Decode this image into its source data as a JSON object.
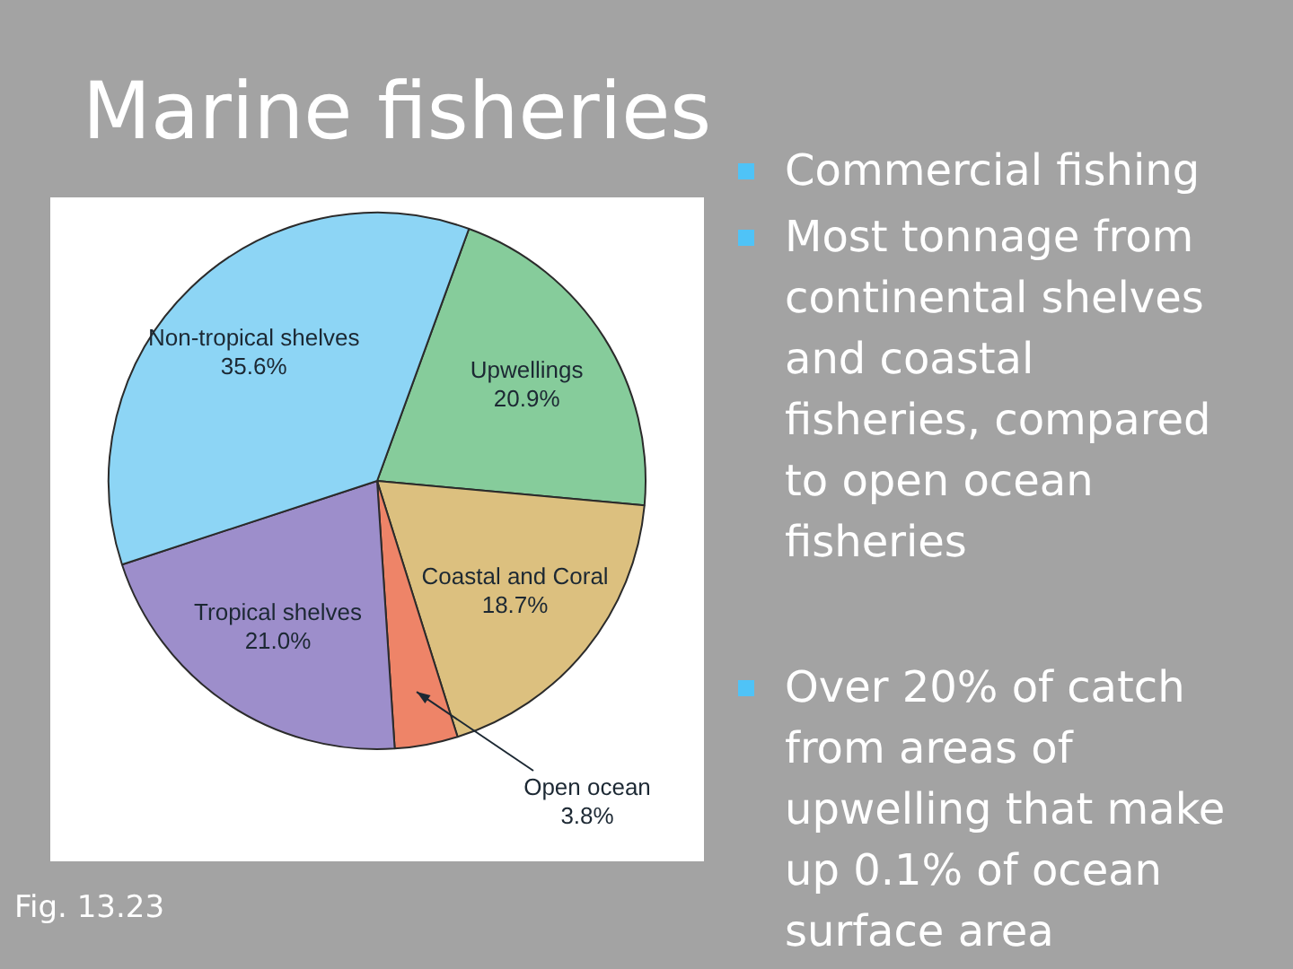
{
  "chart_data": {
    "type": "pie",
    "title": "Marine fisheries",
    "categories": [
      "Upwellings",
      "Coastal and Coral",
      "Open ocean",
      "Tropical shelves",
      "Non-tropical shelves"
    ],
    "values": [
      20.9,
      18.7,
      3.8,
      21.0,
      35.6
    ],
    "colors": [
      "#86cc9b",
      "#dcc07f",
      "#ee8468",
      "#9d8ecb",
      "#8dd5f5"
    ],
    "value_labels": [
      "20.9%",
      "18.7%",
      "3.8%",
      "21.0%",
      "35.6%"
    ],
    "legend": false,
    "annotations": [
      "Commercial fishing",
      "Most tonnage from continental shelves and coastal fisheries, compared to open ocean fisheries",
      "Over 20% of catch from areas of upwelling that make up 0.1% of ocean surface area",
      "Fig. 13.23"
    ]
  }
}
